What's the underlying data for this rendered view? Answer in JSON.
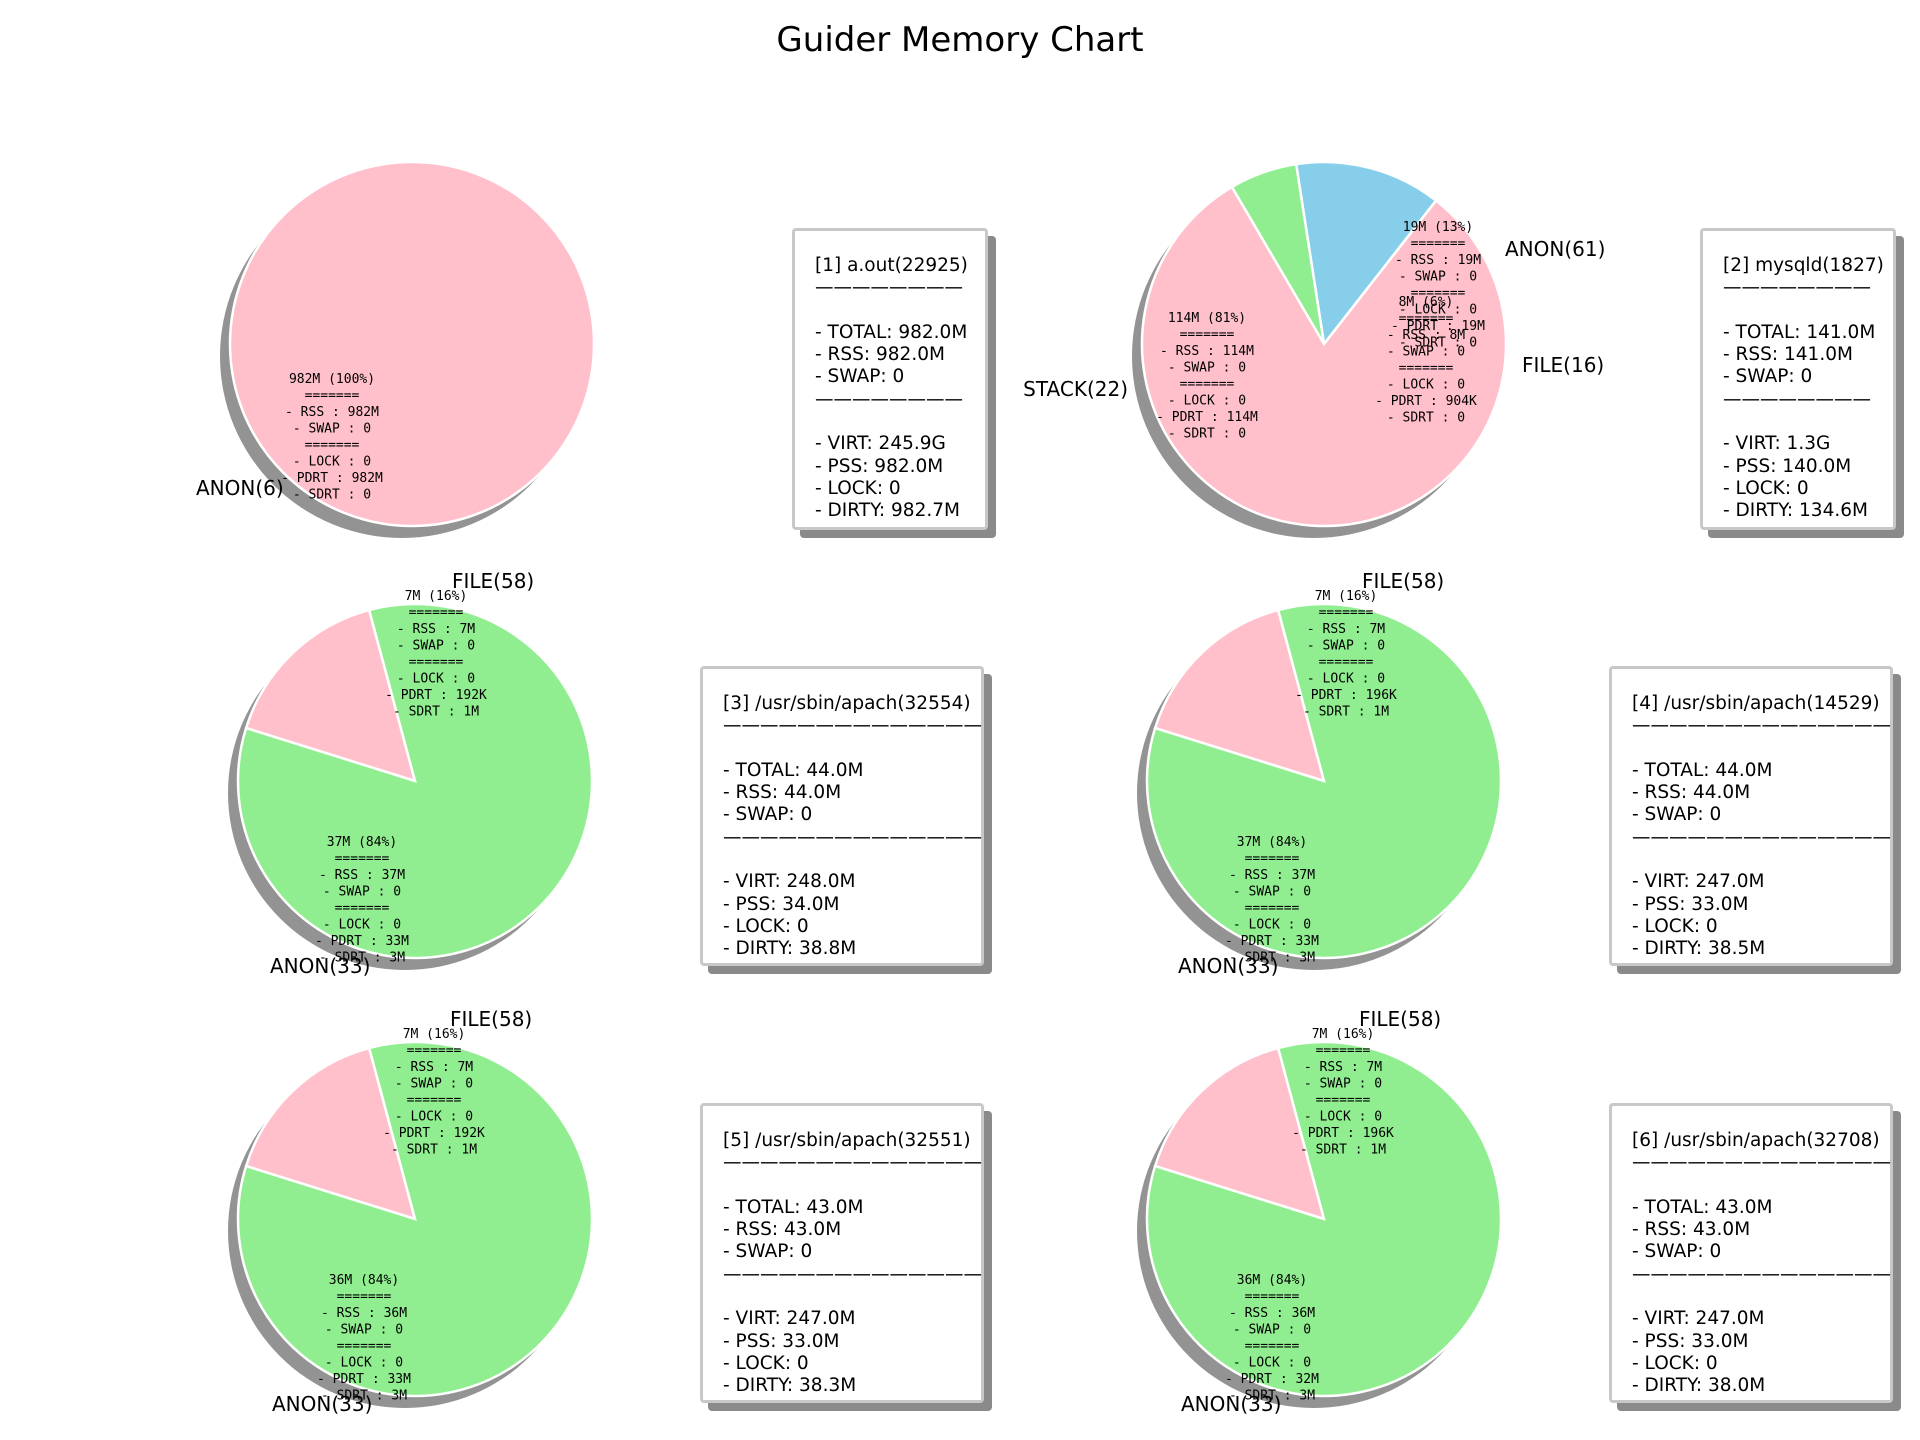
{
  "title": "Guider Memory Chart",
  "colors": {
    "pink": "#ffc0cb",
    "green": "#90ee90",
    "blue": "#87ceeb",
    "shadow": "#939393",
    "box_border": "#c8c8c8",
    "box_shadow": "#8a8a8a"
  },
  "chart_data": [
    {
      "type": "pie",
      "slices": [
        {
          "label": "ANON(6)",
          "value": 982,
          "percent": 100,
          "color": "#ffc0cb",
          "annotation": [
            "982M (100%)",
            "=======",
            "- RSS  :  982M",
            "- SWAP :     0",
            "=======",
            "- LOCK :     0",
            "- PDRT :  982M",
            "- SDRT :     0"
          ]
        }
      ],
      "info": {
        "header": "[1] a.out(22925)",
        "separator": "————————",
        "lines": [
          "- TOTAL: 982.0M",
          "- RSS: 982.0M",
          "- SWAP: 0"
        ],
        "lines2": [
          "- VIRT: 245.9G",
          "- PSS: 982.0M",
          "- LOCK: 0",
          "- DIRTY: 982.7M"
        ]
      }
    },
    {
      "type": "pie",
      "slices": [
        {
          "label": "ANON(61)",
          "value": 19,
          "percent": 13,
          "color": "#87ceeb",
          "annotation": [
            "19M (13%)",
            "=======",
            "- RSS  :   19M",
            "- SWAP :     0",
            "=======",
            "- LOCK :     0",
            "- PDRT :   19M",
            "- SDRT :     0"
          ]
        },
        {
          "label": "FILE(16)",
          "value": 8,
          "percent": 6,
          "color": "#90ee90",
          "annotation": [
            "8M (6%)",
            "=======",
            "- RSS  :    8M",
            "- SWAP :     0",
            "=======",
            "- LOCK :     0",
            "- PDRT :  904K",
            "- SDRT :     0"
          ]
        },
        {
          "label": "STACK(22)",
          "value": 114,
          "percent": 81,
          "color": "#ffc0cb",
          "annotation": [
            "114M (81%)",
            "=======",
            "- RSS  :  114M",
            "- SWAP :     0",
            "=======",
            "- LOCK :     0",
            "- PDRT :  114M",
            "- SDRT :     0"
          ]
        }
      ],
      "info": {
        "header": "[2] mysqld(1827)",
        "separator": "————————",
        "lines": [
          "- TOTAL: 141.0M",
          "- RSS: 141.0M",
          "- SWAP: 0"
        ],
        "lines2": [
          "- VIRT: 1.3G",
          "- PSS: 140.0M",
          "- LOCK: 0",
          "- DIRTY: 134.6M"
        ]
      }
    },
    {
      "type": "pie",
      "slices": [
        {
          "label": "FILE(58)",
          "value": 7,
          "percent": 16,
          "color": "#ffc0cb",
          "annotation": [
            "7M (16%)",
            "=======",
            "- RSS  :    7M",
            "- SWAP :     0",
            "=======",
            "- LOCK :     0",
            "- PDRT :  192K",
            "- SDRT :    1M"
          ]
        },
        {
          "label": "ANON(33)",
          "value": 37,
          "percent": 84,
          "color": "#90ee90",
          "annotation": [
            "37M (84%)",
            "=======",
            "- RSS  :   37M",
            "- SWAP :     0",
            "=======",
            "- LOCK :     0",
            "- PDRT :   33M",
            "- SDRT :    3M"
          ]
        }
      ],
      "info": {
        "header": "[3] /usr/sbin/apach(32554)",
        "separator": "——————————————",
        "lines": [
          "- TOTAL: 44.0M",
          "- RSS: 44.0M",
          "- SWAP: 0"
        ],
        "lines2": [
          "- VIRT: 248.0M",
          "- PSS: 34.0M",
          "- LOCK: 0",
          "- DIRTY: 38.8M"
        ]
      }
    },
    {
      "type": "pie",
      "slices": [
        {
          "label": "FILE(58)",
          "value": 7,
          "percent": 16,
          "color": "#ffc0cb",
          "annotation": [
            "7M (16%)",
            "=======",
            "- RSS  :    7M",
            "- SWAP :     0",
            "=======",
            "- LOCK :     0",
            "- PDRT :  196K",
            "- SDRT :    1M"
          ]
        },
        {
          "label": "ANON(33)",
          "value": 37,
          "percent": 84,
          "color": "#90ee90",
          "annotation": [
            "37M (84%)",
            "=======",
            "- RSS  :   37M",
            "- SWAP :     0",
            "=======",
            "- LOCK :     0",
            "- PDRT :   33M",
            "- SDRT :    3M"
          ]
        }
      ],
      "info": {
        "header": "[4] /usr/sbin/apach(14529)",
        "separator": "——————————————",
        "lines": [
          "- TOTAL: 44.0M",
          "- RSS: 44.0M",
          "- SWAP: 0"
        ],
        "lines2": [
          "- VIRT: 247.0M",
          "- PSS: 33.0M",
          "- LOCK: 0",
          "- DIRTY: 38.5M"
        ]
      }
    },
    {
      "type": "pie",
      "slices": [
        {
          "label": "FILE(58)",
          "value": 7,
          "percent": 16,
          "color": "#ffc0cb",
          "annotation": [
            "7M (16%)",
            "=======",
            "- RSS  :    7M",
            "- SWAP :     0",
            "=======",
            "- LOCK :     0",
            "- PDRT :  192K",
            "- SDRT :    1M"
          ]
        },
        {
          "label": "ANON(33)",
          "value": 36,
          "percent": 84,
          "color": "#90ee90",
          "annotation": [
            "36M (84%)",
            "=======",
            "- RSS  :   36M",
            "- SWAP :     0",
            "=======",
            "- LOCK :     0",
            "- PDRT :   33M",
            "- SDRT :    3M"
          ]
        }
      ],
      "info": {
        "header": "[5] /usr/sbin/apach(32551)",
        "separator": "——————————————",
        "lines": [
          "- TOTAL: 43.0M",
          "- RSS: 43.0M",
          "- SWAP: 0"
        ],
        "lines2": [
          "- VIRT: 247.0M",
          "- PSS: 33.0M",
          "- LOCK: 0",
          "- DIRTY: 38.3M"
        ]
      }
    },
    {
      "type": "pie",
      "slices": [
        {
          "label": "FILE(58)",
          "value": 7,
          "percent": 16,
          "color": "#ffc0cb",
          "annotation": [
            "7M (16%)",
            "=======",
            "- RSS  :    7M",
            "- SWAP :     0",
            "=======",
            "- LOCK :     0",
            "- PDRT :  196K",
            "- SDRT :    1M"
          ]
        },
        {
          "label": "ANON(33)",
          "value": 36,
          "percent": 84,
          "color": "#90ee90",
          "annotation": [
            "36M (84%)",
            "=======",
            "- RSS  :   36M",
            "- SWAP :     0",
            "=======",
            "- LOCK :     0",
            "- PDRT :   32M",
            "- SDRT :    3M"
          ]
        }
      ],
      "info": {
        "header": "[6] /usr/sbin/apach(32708)",
        "separator": "——————————————",
        "lines": [
          "- TOTAL: 43.0M",
          "- RSS: 43.0M",
          "- SWAP: 0"
        ],
        "lines2": [
          "- VIRT: 247.0M",
          "- PSS: 33.0M",
          "- LOCK: 0",
          "- DIRTY: 38.0M"
        ]
      }
    }
  ]
}
